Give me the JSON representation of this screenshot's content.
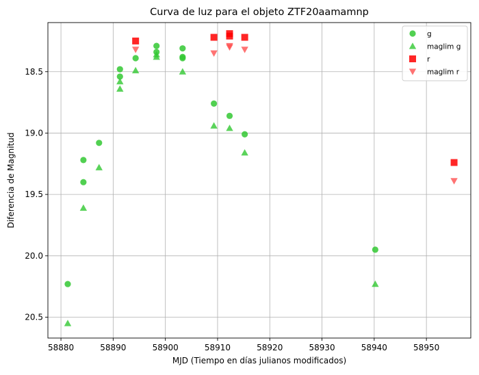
{
  "chart_data": {
    "type": "scatter",
    "title": "Curva de luz para el objeto ZTF20aamamnp",
    "xlabel": "MJD (Tiempo en días julianos modificados)",
    "ylabel": "Diferencia de Magnitud",
    "xlim": [
      58877.5,
      58958.5
    ],
    "ylim": [
      20.67,
      18.1
    ],
    "y_inverted": true,
    "grid": true,
    "legend_position": "top-right",
    "x_ticks": [
      58880,
      58890,
      58900,
      58910,
      58920,
      58930,
      58940,
      58950
    ],
    "x_tick_labels": [
      "58880",
      "58890",
      "58900",
      "58910",
      "58920",
      "58930",
      "58940",
      "58950"
    ],
    "y_ticks": [
      18.5,
      19.0,
      19.5,
      20.0,
      20.5
    ],
    "y_tick_labels": [
      "18.5",
      "19.0",
      "19.5",
      "20.0",
      "20.5"
    ],
    "series": [
      {
        "name": "g",
        "marker": "circle",
        "color": "#2ca02c",
        "fill": "#32c832",
        "points": [
          [
            58881.3,
            20.23
          ],
          [
            58884.3,
            19.22
          ],
          [
            58884.3,
            19.4
          ],
          [
            58887.3,
            19.08
          ],
          [
            58891.3,
            18.48
          ],
          [
            58891.3,
            18.54
          ],
          [
            58894.3,
            18.39
          ],
          [
            58898.3,
            18.29
          ],
          [
            58898.3,
            18.34
          ],
          [
            58903.3,
            18.38
          ],
          [
            58903.3,
            18.39
          ],
          [
            58903.3,
            18.31
          ],
          [
            58909.3,
            18.76
          ],
          [
            58912.3,
            18.86
          ],
          [
            58915.2,
            19.01
          ],
          [
            58940.2,
            19.95
          ]
        ]
      },
      {
        "name": "maglim g",
        "marker": "triangle-up",
        "color": "#32c832",
        "points": [
          [
            58881.3,
            20.55
          ],
          [
            58884.3,
            19.61
          ],
          [
            58887.3,
            19.28
          ],
          [
            58891.3,
            18.58
          ],
          [
            58891.3,
            18.64
          ],
          [
            58894.3,
            18.49
          ],
          [
            58898.3,
            18.36
          ],
          [
            58898.3,
            18.38
          ],
          [
            58903.3,
            18.5
          ],
          [
            58909.3,
            18.94
          ],
          [
            58912.3,
            18.96
          ],
          [
            58915.2,
            19.16
          ],
          [
            58940.2,
            20.23
          ]
        ]
      },
      {
        "name": "r",
        "marker": "square",
        "color": "#ff0000",
        "points": [
          [
            58894.3,
            18.25
          ],
          [
            58909.3,
            18.22
          ],
          [
            58912.3,
            18.19
          ],
          [
            58912.3,
            18.21
          ],
          [
            58915.2,
            18.22
          ],
          [
            58955.3,
            19.24
          ]
        ]
      },
      {
        "name": "maglim r",
        "marker": "triangle-down",
        "color": "#ff5050",
        "points": [
          [
            58894.3,
            18.32
          ],
          [
            58909.3,
            18.35
          ],
          [
            58912.3,
            18.29
          ],
          [
            58912.3,
            18.3
          ],
          [
            58915.2,
            18.32
          ],
          [
            58955.3,
            19.39
          ]
        ]
      }
    ]
  }
}
